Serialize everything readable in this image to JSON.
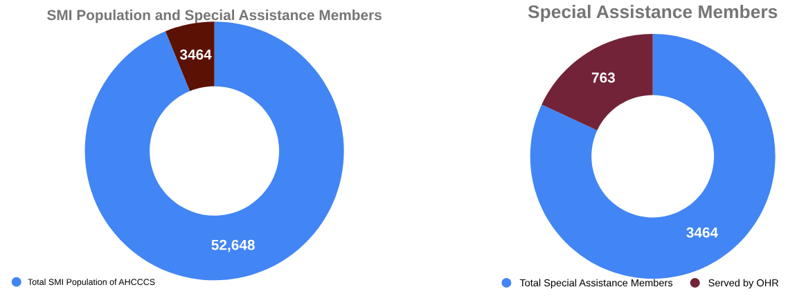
{
  "chart_data": [
    {
      "type": "donut",
      "title": "SMI Population and Special Assistance Members",
      "categories": [
        "Total SMI Population of AHCCCS",
        null
      ],
      "values": [
        52648,
        3464
      ],
      "colors": [
        "#4285f4",
        "#5c1105"
      ],
      "value_labels": [
        "52,648",
        "3464"
      ],
      "legend": "bottom left"
    },
    {
      "type": "donut",
      "title": "Special Assistance Members",
      "categories": [
        "Total Special Assistance Members",
        "Served by OHR"
      ],
      "values": [
        3464,
        763
      ],
      "colors": [
        "#4285f4",
        "#722338"
      ],
      "data_labels": true,
      "legend": "bottom"
    }
  ]
}
